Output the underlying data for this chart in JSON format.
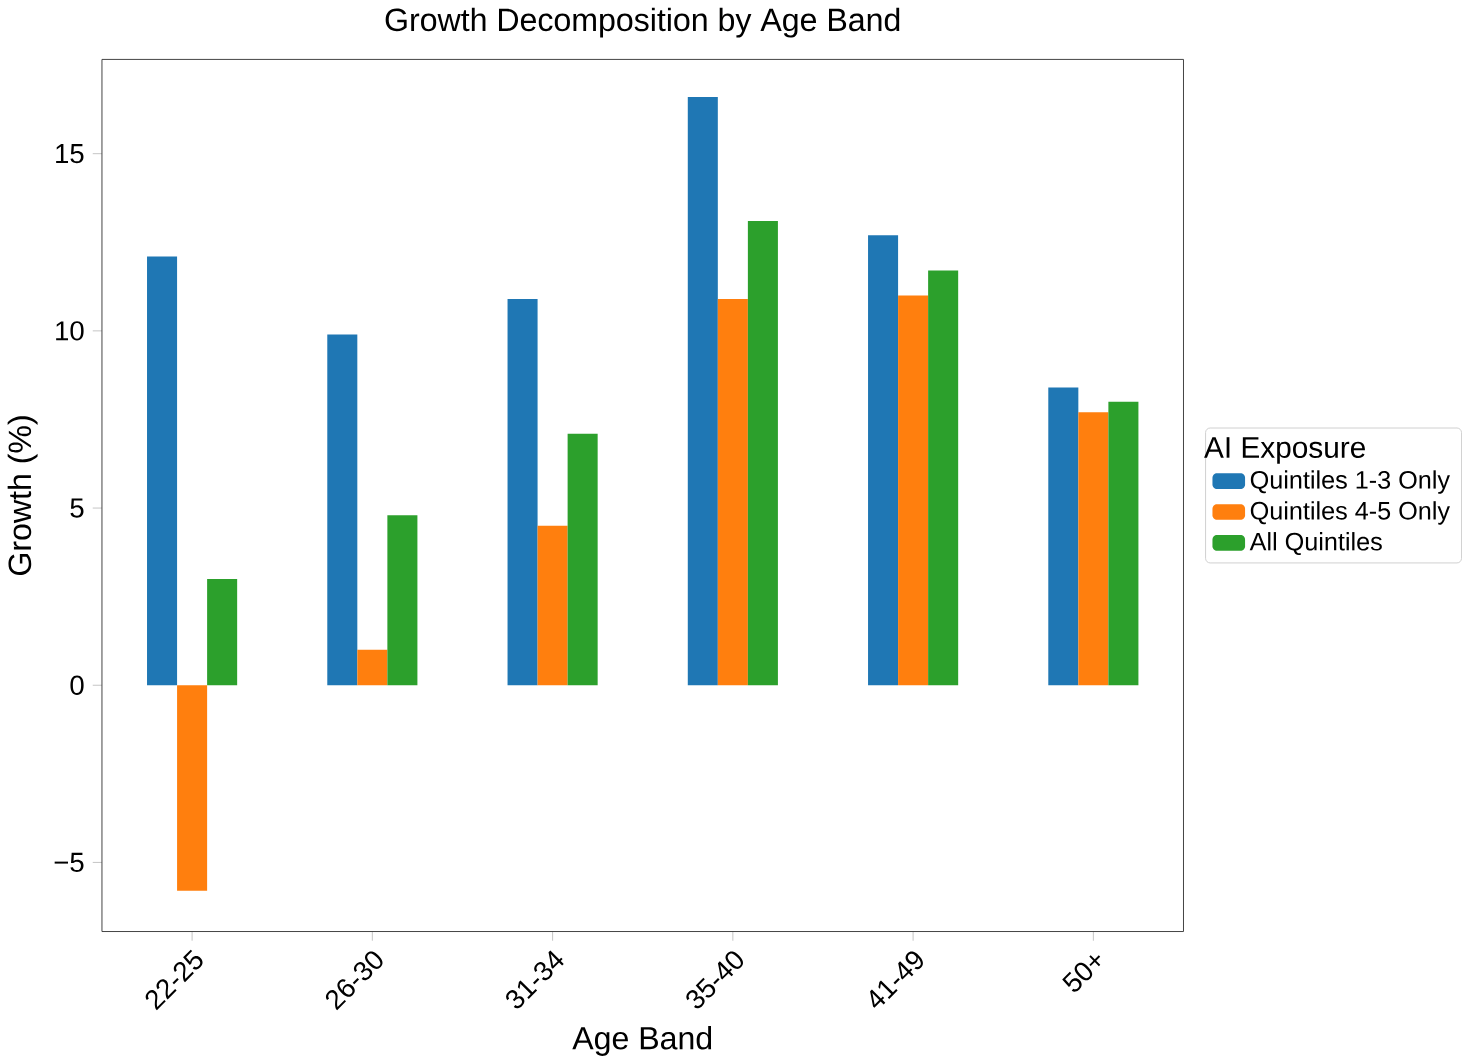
{
  "chart_data": {
    "type": "bar",
    "title": "Growth Decomposition by Age Band",
    "xlabel": "Age Band",
    "ylabel": "Growth (%)",
    "legend_title": "AI Exposure",
    "categories": [
      "22-25",
      "26-30",
      "31-34",
      "35-40",
      "41-49",
      "50+"
    ],
    "series": [
      {
        "name": "Quintiles 1-3 Only",
        "color": "#1f77b4",
        "values": [
          12.1,
          9.9,
          10.9,
          16.6,
          12.7,
          8.4
        ]
      },
      {
        "name": "Quintiles 4-5 Only",
        "color": "#ff7f0e",
        "values": [
          -5.8,
          1.0,
          4.5,
          10.9,
          11.0,
          7.7
        ]
      },
      {
        "name": "All Quintiles",
        "color": "#2ca02c",
        "values": [
          3.0,
          4.8,
          7.1,
          13.1,
          11.7,
          8.0
        ]
      }
    ],
    "ylim": [
      -6.95,
      17.66
    ],
    "yticks": [
      {
        "value": -5,
        "label": "−5"
      },
      0,
      5,
      10,
      15
    ],
    "legend": "right"
  }
}
